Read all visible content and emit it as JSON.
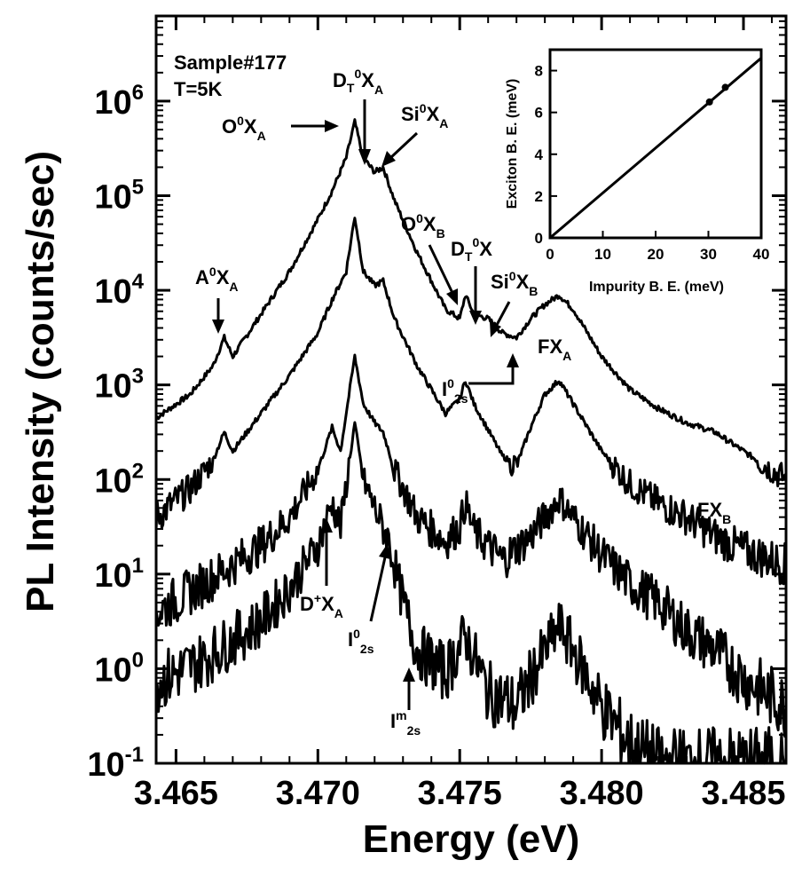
{
  "chart_data": [
    {
      "type": "line",
      "title": "",
      "xlabel": "Energy (eV)",
      "ylabel": "PL Intensity (counts/sec)",
      "xlim": [
        3.4643,
        3.4865
      ],
      "ylim_log10": [
        -1,
        6.9
      ],
      "yscale": "log",
      "grid": false,
      "x_ticks": [
        3.465,
        3.47,
        3.475,
        3.48,
        3.485
      ],
      "x_tick_labels": [
        "3.465",
        "3.470",
        "3.475",
        "3.480",
        "3.485"
      ],
      "y_ticks": [
        {
          "mantissa": "10",
          "exp": "-1",
          "log10": -1
        },
        {
          "mantissa": "10",
          "exp": "0",
          "log10": 0
        },
        {
          "mantissa": "10",
          "exp": "1",
          "log10": 1
        },
        {
          "mantissa": "10",
          "exp": "2",
          "log10": 2
        },
        {
          "mantissa": "10",
          "exp": "3",
          "log10": 3
        },
        {
          "mantissa": "10",
          "exp": "4",
          "log10": 4
        },
        {
          "mantissa": "10",
          "exp": "5",
          "log10": 5
        },
        {
          "mantissa": "10",
          "exp": "6",
          "log10": 6
        }
      ],
      "series_note_log10_y": true,
      "series": [
        {
          "points": [
            [
              3.4643,
              2.65
            ],
            [
              3.4655,
              2.9
            ],
            [
              3.4663,
              3.2
            ],
            [
              3.4667,
              3.5
            ],
            [
              3.467,
              3.3
            ],
            [
              3.468,
              3.75
            ],
            [
              3.469,
              4.2
            ],
            [
              3.47,
              4.75
            ],
            [
              3.4705,
              5.05
            ],
            [
              3.471,
              5.4
            ],
            [
              3.4713,
              5.78
            ],
            [
              3.4716,
              5.4
            ],
            [
              3.472,
              5.25
            ],
            [
              3.4723,
              5.3
            ],
            [
              3.4727,
              4.95
            ],
            [
              3.4735,
              4.4
            ],
            [
              3.4745,
              3.8
            ],
            [
              3.475,
              3.7
            ],
            [
              3.4752,
              3.95
            ],
            [
              3.4755,
              3.75
            ],
            [
              3.476,
              3.7
            ],
            [
              3.4765,
              3.55
            ],
            [
              3.477,
              3.5
            ],
            [
              3.4775,
              3.7
            ],
            [
              3.478,
              3.85
            ],
            [
              3.4785,
              3.95
            ],
            [
              3.479,
              3.8
            ],
            [
              3.48,
              3.3
            ],
            [
              3.481,
              2.95
            ],
            [
              3.482,
              2.75
            ],
            [
              3.483,
              2.6
            ],
            [
              3.484,
              2.5
            ],
            [
              3.485,
              2.3
            ],
            [
              3.486,
              2.1
            ],
            [
              3.4865,
              2.0
            ]
          ]
        },
        {
          "points": [
            [
              3.4643,
              1.6
            ],
            [
              3.4655,
              1.9
            ],
            [
              3.4663,
              2.2
            ],
            [
              3.4667,
              2.5
            ],
            [
              3.467,
              2.3
            ],
            [
              3.468,
              2.7
            ],
            [
              3.469,
              3.1
            ],
            [
              3.47,
              3.55
            ],
            [
              3.4705,
              3.9
            ],
            [
              3.471,
              4.2
            ],
            [
              3.4713,
              4.78
            ],
            [
              3.4716,
              4.2
            ],
            [
              3.472,
              4.05
            ],
            [
              3.4723,
              4.1
            ],
            [
              3.4727,
              3.7
            ],
            [
              3.4735,
              3.2
            ],
            [
              3.4745,
              2.7
            ],
            [
              3.475,
              2.85
            ],
            [
              3.4752,
              3.05
            ],
            [
              3.4755,
              2.8
            ],
            [
              3.4765,
              2.25
            ],
            [
              3.477,
              2.15
            ],
            [
              3.4775,
              2.55
            ],
            [
              3.478,
              2.9
            ],
            [
              3.4785,
              3.05
            ],
            [
              3.479,
              2.8
            ],
            [
              3.48,
              2.3
            ],
            [
              3.481,
              1.95
            ],
            [
              3.482,
              1.75
            ],
            [
              3.483,
              1.6
            ],
            [
              3.484,
              1.4
            ],
            [
              3.485,
              1.25
            ],
            [
              3.486,
              1.15
            ],
            [
              3.4865,
              1.1
            ]
          ]
        },
        {
          "points": [
            [
              3.4643,
              0.6
            ],
            [
              3.466,
              0.9
            ],
            [
              3.468,
              1.3
            ],
            [
              3.469,
              1.6
            ],
            [
              3.47,
              2.1
            ],
            [
              3.4705,
              2.55
            ],
            [
              3.4708,
              2.3
            ],
            [
              3.4713,
              3.3
            ],
            [
              3.4716,
              2.8
            ],
            [
              3.472,
              2.6
            ],
            [
              3.4723,
              2.5
            ],
            [
              3.4727,
              2.1
            ],
            [
              3.4735,
              1.6
            ],
            [
              3.4745,
              1.35
            ],
            [
              3.475,
              1.5
            ],
            [
              3.4752,
              1.75
            ],
            [
              3.4755,
              1.45
            ],
            [
              3.4765,
              1.15
            ],
            [
              3.4775,
              1.4
            ],
            [
              3.4785,
              1.8
            ],
            [
              3.479,
              1.6
            ],
            [
              3.48,
              1.2
            ],
            [
              3.481,
              0.9
            ],
            [
              3.482,
              0.7
            ],
            [
              3.483,
              0.4
            ],
            [
              3.484,
              0.2
            ],
            [
              3.485,
              -0.1
            ],
            [
              3.4865,
              -0.4
            ]
          ]
        },
        {
          "points": [
            [
              3.4643,
              -0.15
            ],
            [
              3.466,
              0.1
            ],
            [
              3.468,
              0.5
            ],
            [
              3.469,
              0.85
            ],
            [
              3.47,
              1.3
            ],
            [
              3.4705,
              1.75
            ],
            [
              3.4708,
              1.5
            ],
            [
              3.4713,
              2.6
            ],
            [
              3.4716,
              2.0
            ],
            [
              3.472,
              1.7
            ],
            [
              3.4725,
              1.35
            ],
            [
              3.473,
              0.7
            ],
            [
              3.4735,
              0.2
            ],
            [
              3.4745,
              -0.05
            ],
            [
              3.4752,
              0.35
            ],
            [
              3.476,
              -0.25
            ],
            [
              3.477,
              -0.4
            ],
            [
              3.4775,
              -0.1
            ],
            [
              3.4785,
              0.45
            ],
            [
              3.479,
              0.2
            ],
            [
              3.48,
              -0.4
            ],
            [
              3.481,
              -0.8
            ],
            [
              3.482,
              -1.0
            ],
            [
              3.4865,
              -1.0
            ]
          ]
        }
      ]
    },
    {
      "type": "line",
      "title": "",
      "xlabel": "Impurity B. E. (meV)",
      "ylabel": "Exciton B. E. (meV)",
      "xlim": [
        0,
        40
      ],
      "ylim": [
        0,
        9
      ],
      "x_ticks": [
        0,
        10,
        20,
        30,
        40
      ],
      "y_ticks": [
        0,
        2,
        4,
        6,
        8
      ],
      "grid": false,
      "series": [
        {
          "points": [
            [
              0,
              0
            ],
            [
              40,
              8.6
            ]
          ]
        }
      ],
      "markers": [
        [
          30.2,
          6.5
        ],
        [
          33.2,
          7.2
        ]
      ]
    }
  ],
  "annotations": {
    "sample": "Sample#177",
    "temp": "T=5K",
    "o_xa": {
      "main": "O",
      "sup": "0",
      "mid": "X",
      "sub": "A"
    },
    "d_xa": {
      "main": "D",
      "sub1": "T",
      "sup": "0",
      "mid": "X",
      "sub": "A"
    },
    "si_xa": {
      "main": "Si",
      "sup": "0",
      "mid": "X",
      "sub": "A"
    },
    "a_xa": {
      "main": "A",
      "sup": "0",
      "mid": "X",
      "sub": "A"
    },
    "o_xb": {
      "main": "O",
      "sup": "0",
      "mid": "X",
      "sub": "B"
    },
    "d_x": {
      "main": "D",
      "sub1": "T",
      "sup": "0",
      "mid": "X"
    },
    "si_xb": {
      "main": "Si",
      "sup": "0",
      "mid": "X",
      "sub": "B"
    },
    "i_2s_top": {
      "main": "I",
      "sup": "0",
      "sub": "2s"
    },
    "fx_a": {
      "main": "FX",
      "sub": "A"
    },
    "fx_b": {
      "main": "FX",
      "sub": "B"
    },
    "dplus_xa": {
      "main": "D",
      "sup": "+",
      "mid": "X",
      "sub": "A"
    },
    "i0_2s": {
      "main": "I",
      "sup": "0",
      "sub": "2s"
    },
    "im_2s": {
      "main": "I",
      "sup": "m",
      "sub": "2s"
    }
  }
}
